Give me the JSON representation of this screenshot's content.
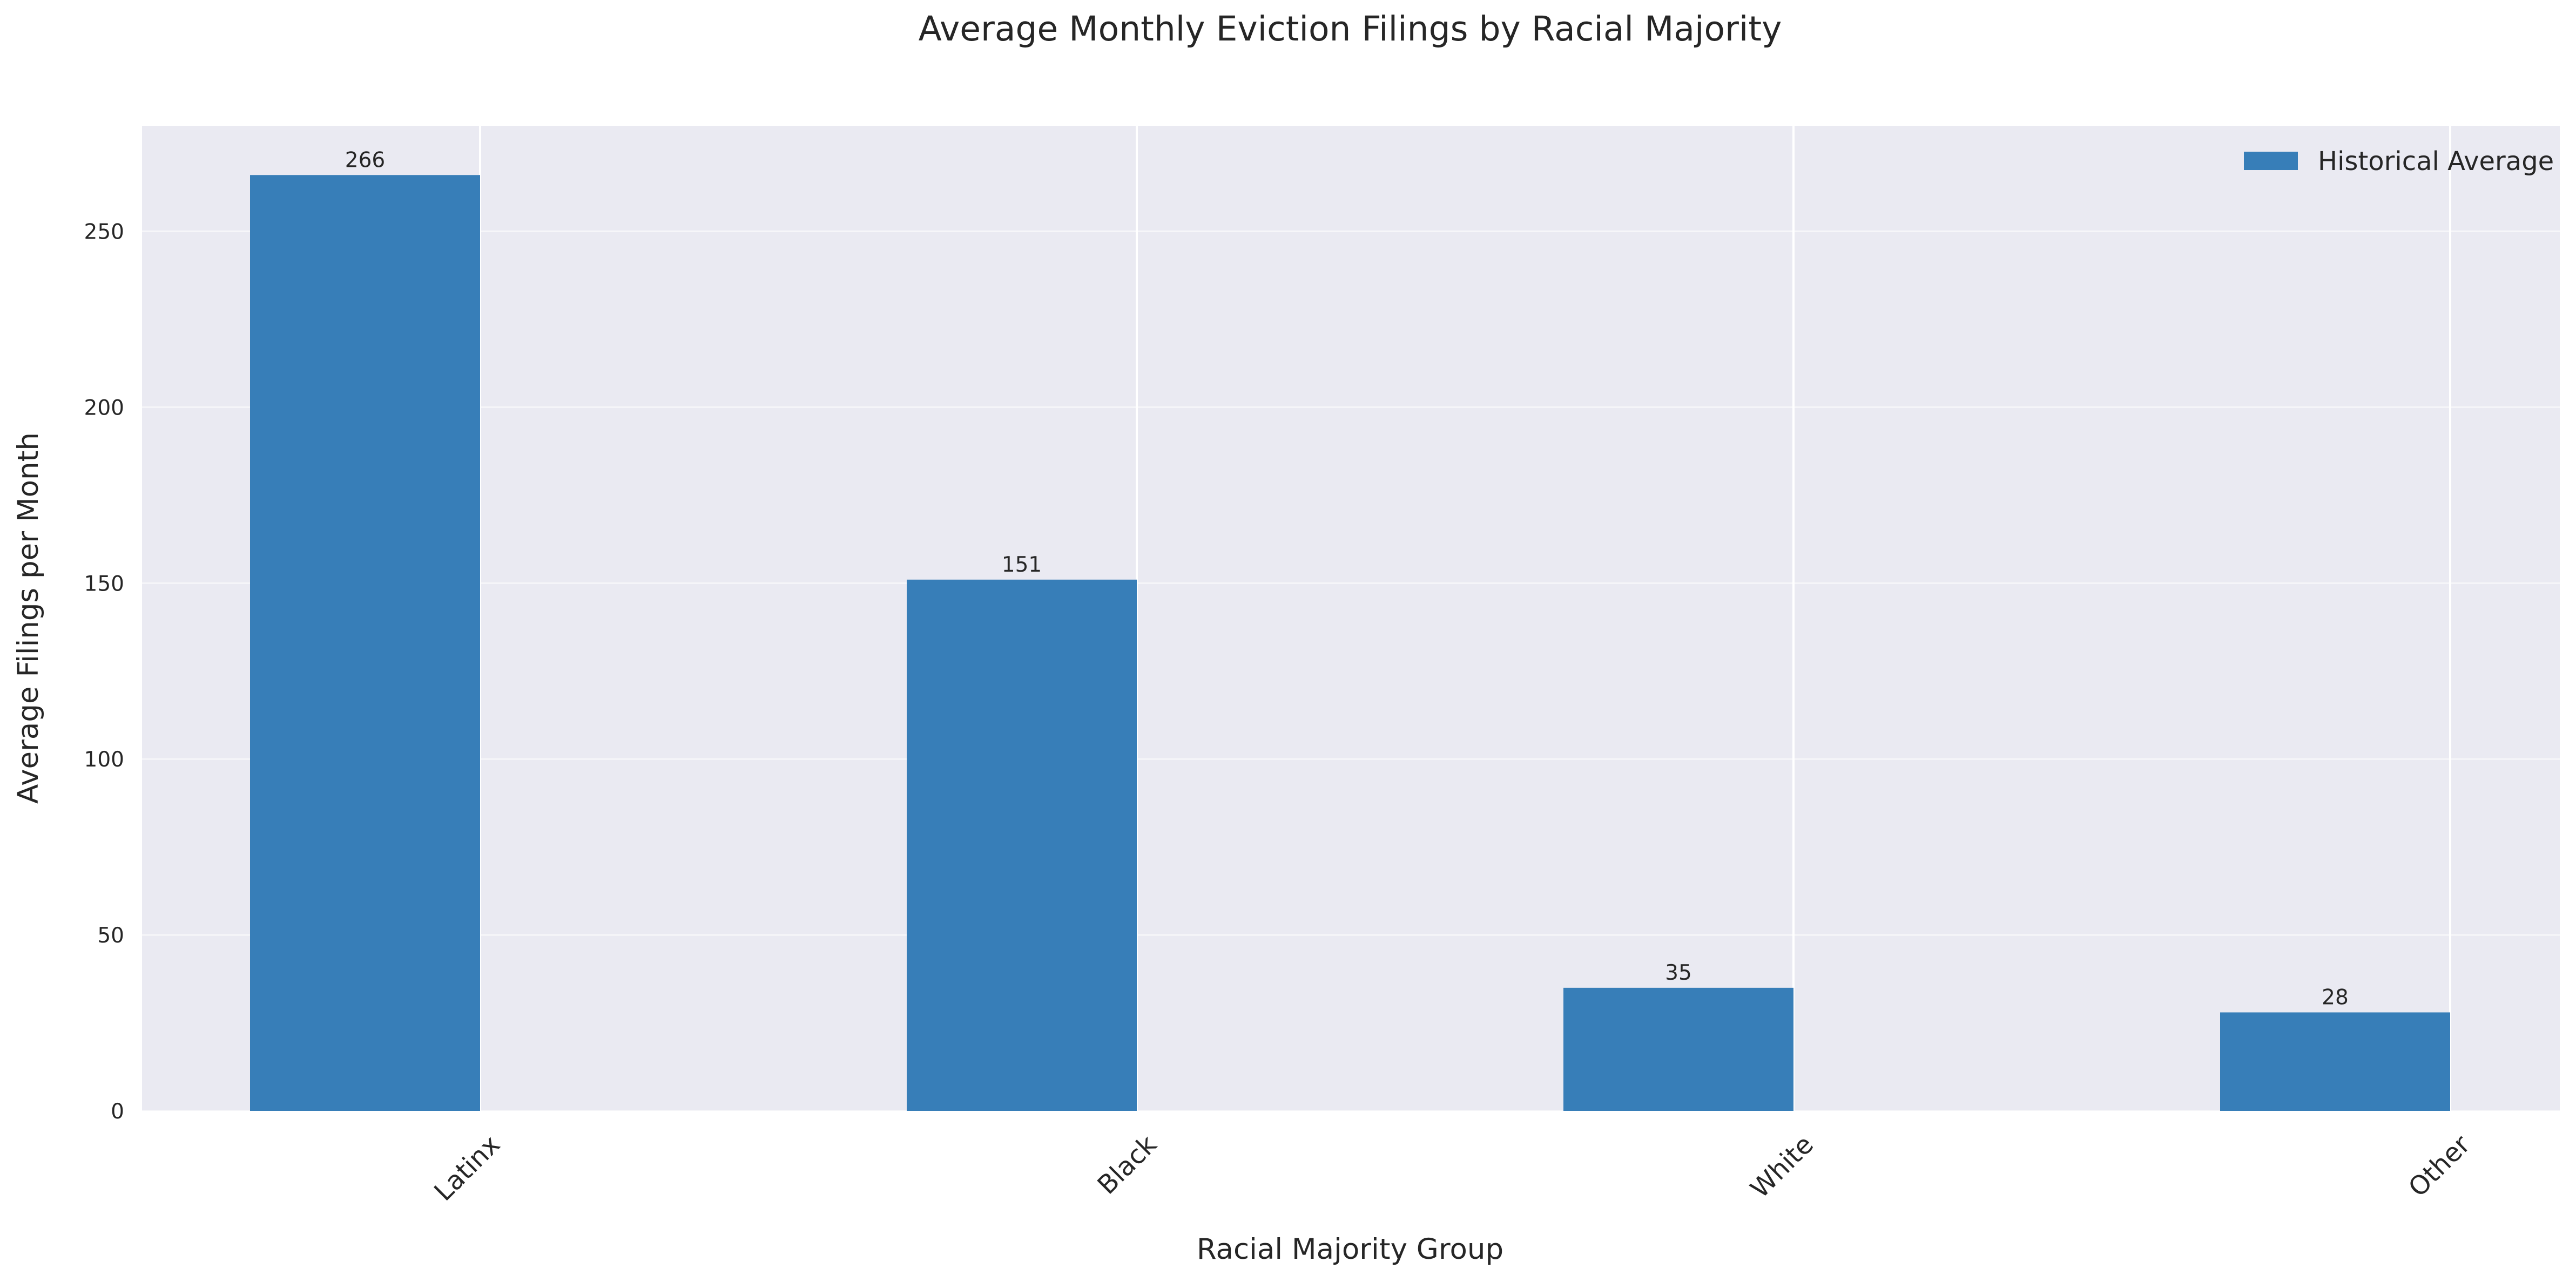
{
  "chart_data": {
    "type": "bar",
    "title": "Average Monthly Eviction Filings by Racial Majority",
    "xlabel": "Racial Majority Group",
    "ylabel": "Average Filings per Month",
    "categories": [
      "Latinx",
      "Black",
      "White",
      "Other"
    ],
    "series": [
      {
        "name": "Historical Average",
        "values": [
          266,
          151,
          35,
          28
        ],
        "color": "#377eb8"
      }
    ],
    "data_labels": [
      "266",
      "151",
      "35",
      "28"
    ],
    "ylim": [
      0,
      280
    ],
    "yticks": [
      0,
      50,
      100,
      150,
      200,
      250
    ],
    "grid": true,
    "legend_position": "top-right",
    "xtick_rotation": "45 degrees",
    "background_color": "#eaeaf2",
    "grid_color": "#ffffff"
  }
}
